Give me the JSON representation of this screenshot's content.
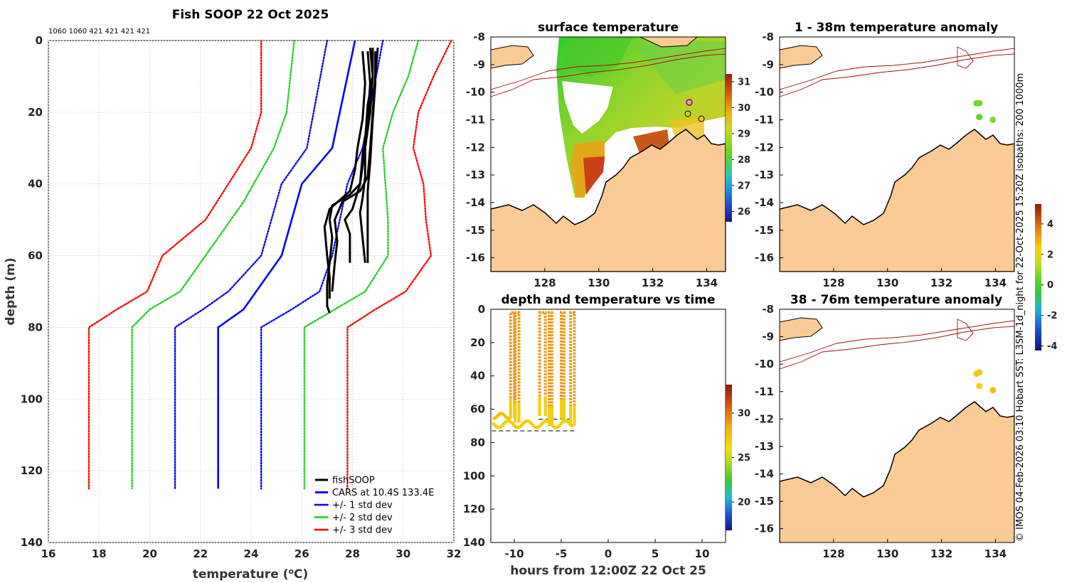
{
  "figure": {
    "credit": "© IMOS 04-Feb-2026 03:10 Hobart SST: L3SM-1d_night for 22-Oct-2025 15:20Z isobaths: 200  1000m"
  },
  "profile": {
    "title": "Fish SOOP 22 Oct 2025",
    "header_counts": "1060 1060 421 421 421 421",
    "xlabel": "temperature (°C)",
    "ylabel": "depth (m)"
  },
  "sst_map": {
    "title": "surface temperature"
  },
  "timeseries": {
    "title": "depth and temperature vs time",
    "xlabel": "hours from 12:00Z 22 Oct 25"
  },
  "anom_upper": {
    "title": "1 - 38m temperature anomaly"
  },
  "anom_lower": {
    "title": "38 - 76m temperature anomaly"
  },
  "chart_data": [
    {
      "id": "profile",
      "type": "line",
      "title": "Fish SOOP 22 Oct 2025",
      "xlabel": "temperature (°C)",
      "ylabel": "depth (m)",
      "xlim": [
        16,
        32
      ],
      "ylim": [
        140,
        0
      ],
      "xticks": [
        16,
        18,
        20,
        22,
        24,
        26,
        28,
        30,
        32
      ],
      "yticks": [
        0,
        20,
        40,
        60,
        80,
        100,
        120,
        140
      ],
      "grid": true,
      "legend_position": "bottom-right",
      "series": [
        {
          "name": "CARS at 10.4S 133.4E",
          "style": "solid",
          "color": "#0000ff",
          "points": [
            [
              28.1,
              0
            ],
            [
              27.2,
              30
            ],
            [
              26.0,
              40
            ],
            [
              25.2,
              60
            ],
            [
              24.2,
              70
            ],
            [
              23.7,
              75
            ],
            [
              22.7,
              80
            ],
            [
              22.7,
              125
            ]
          ]
        },
        {
          "name": "+/- 1 std dev",
          "style": "dotted",
          "color": "#0000ff",
          "points": [
            [
              27.0,
              0
            ],
            [
              26.2,
              30
            ],
            [
              25.2,
              40
            ],
            [
              24.4,
              60
            ],
            [
              23.1,
              70
            ],
            [
              22.1,
              75
            ],
            [
              21.0,
              80
            ],
            [
              21.0,
              125
            ]
          ]
        },
        {
          "name": "",
          "style": "dotted",
          "color": "#0000ff",
          "points": [
            [
              29.2,
              0
            ],
            [
              28.4,
              30
            ],
            [
              27.8,
              40
            ],
            [
              27.5,
              50
            ],
            [
              27.2,
              60
            ],
            [
              26.7,
              70
            ],
            [
              25.6,
              75
            ],
            [
              24.4,
              80
            ],
            [
              24.4,
              125
            ]
          ]
        },
        {
          "name": "+/- 2 std dev",
          "style": "dotted",
          "color": "#22cc22",
          "points": [
            [
              25.7,
              0
            ],
            [
              25.4,
              20
            ],
            [
              24.9,
              30
            ],
            [
              23.7,
              45
            ],
            [
              22.2,
              60
            ],
            [
              21.2,
              70
            ],
            [
              20.0,
              75
            ],
            [
              19.3,
              80
            ],
            [
              19.3,
              125
            ]
          ]
        },
        {
          "name": "",
          "style": "dotted",
          "color": "#22cc22",
          "points": [
            [
              30.6,
              0
            ],
            [
              30.2,
              10
            ],
            [
              29.6,
              20
            ],
            [
              29.2,
              30
            ],
            [
              29.3,
              40
            ],
            [
              29.4,
              50
            ],
            [
              29.4,
              60
            ],
            [
              28.5,
              70
            ],
            [
              27.3,
              75
            ],
            [
              26.1,
              80
            ],
            [
              26.1,
              125
            ]
          ]
        },
        {
          "name": "+/- 3 std dev",
          "style": "dotted",
          "color": "#ff0000",
          "points": [
            [
              24.4,
              0
            ],
            [
              24.4,
              20
            ],
            [
              24.0,
              30
            ],
            [
              22.2,
              50
            ],
            [
              20.5,
              60
            ],
            [
              19.9,
              70
            ],
            [
              18.7,
              75
            ],
            [
              17.6,
              80
            ],
            [
              17.6,
              125
            ]
          ]
        },
        {
          "name": "",
          "style": "dotted",
          "color": "#ff0000",
          "points": [
            [
              31.9,
              0
            ],
            [
              31.2,
              10
            ],
            [
              30.6,
              20
            ],
            [
              30.4,
              30
            ],
            [
              30.8,
              40
            ],
            [
              30.9,
              50
            ],
            [
              31.1,
              60
            ],
            [
              30.1,
              70
            ],
            [
              28.9,
              75
            ],
            [
              27.8,
              80
            ],
            [
              27.8,
              125
            ]
          ]
        },
        {
          "name": "fishSOOP",
          "style": "solid",
          "color": "#000000",
          "points": [
            [
              28.7,
              2
            ],
            [
              28.8,
              10
            ],
            [
              28.7,
              20
            ],
            [
              28.5,
              30
            ],
            [
              28.3,
              40
            ],
            [
              27.9,
              43
            ],
            [
              27.2,
              46
            ],
            [
              27.1,
              50
            ],
            [
              27.2,
              55
            ],
            [
              27.1,
              62
            ],
            [
              27.0,
              68
            ],
            [
              27.0,
              74
            ],
            [
              27.1,
              76
            ]
          ]
        },
        {
          "name": "",
          "style": "solid",
          "color": "#000000",
          "points": [
            [
              29.0,
              2
            ],
            [
              28.9,
              10
            ],
            [
              28.8,
              20
            ],
            [
              28.7,
              30
            ],
            [
              28.6,
              38
            ],
            [
              28.3,
              42
            ],
            [
              27.6,
              45
            ],
            [
              27.3,
              50
            ],
            [
              27.4,
              56
            ],
            [
              27.3,
              62
            ],
            [
              27.2,
              70
            ]
          ]
        },
        {
          "name": "",
          "style": "solid",
          "color": "#000000",
          "points": [
            [
              28.6,
              3
            ],
            [
              28.7,
              12
            ],
            [
              28.6,
              22
            ],
            [
              28.4,
              32
            ],
            [
              28.3,
              40
            ],
            [
              28.0,
              47
            ],
            [
              27.7,
              50
            ],
            [
              27.9,
              54
            ],
            [
              27.9,
              62
            ]
          ]
        },
        {
          "name": "",
          "style": "solid",
          "color": "#000000",
          "points": [
            [
              28.9,
              3
            ],
            [
              28.9,
              12
            ],
            [
              28.8,
              22
            ],
            [
              28.7,
              34
            ],
            [
              28.6,
              42
            ],
            [
              28.6,
              50
            ],
            [
              28.6,
              56
            ],
            [
              28.6,
              62
            ]
          ]
        },
        {
          "name": "",
          "style": "solid",
          "color": "#000000",
          "points": [
            [
              28.4,
              3
            ],
            [
              28.5,
              12
            ],
            [
              28.4,
              22
            ],
            [
              28.2,
              30
            ],
            [
              28.1,
              36
            ],
            [
              27.9,
              42
            ],
            [
              27.1,
              47
            ],
            [
              26.9,
              52
            ],
            [
              27.0,
              60
            ],
            [
              27.1,
              66
            ],
            [
              27.1,
              72
            ]
          ]
        },
        {
          "name": "",
          "style": "solid",
          "color": "#000000",
          "points": [
            [
              28.8,
              2
            ],
            [
              28.8,
              10
            ],
            [
              28.6,
              18
            ],
            [
              28.5,
              28
            ],
            [
              28.5,
              38
            ],
            [
              28.4,
              44
            ],
            [
              28.3,
              48
            ],
            [
              28.4,
              55
            ],
            [
              28.5,
              62
            ]
          ]
        }
      ]
    },
    {
      "id": "sst_map",
      "type": "heatmap",
      "title": "surface temperature",
      "xlim": [
        126,
        134.7
      ],
      "ylim": [
        -16.5,
        -8
      ],
      "xticks": [
        128,
        130,
        132,
        134
      ],
      "yticks": [
        -8,
        -9,
        -10,
        -11,
        -12,
        -13,
        -14,
        -15,
        -16
      ],
      "colorbar": {
        "min": 25.6,
        "max": 31.3,
        "ticks": [
          26,
          27,
          28,
          29,
          30,
          31
        ]
      }
    },
    {
      "id": "timeseries",
      "type": "scatter",
      "title": "depth and temperature vs time",
      "xlabel": "hours from 12:00Z 22 Oct 25",
      "xlim": [
        -12.5,
        12.5
      ],
      "ylim": [
        140,
        0
      ],
      "xticks": [
        -10,
        -5,
        0,
        5,
        10
      ],
      "yticks": [
        0,
        20,
        40,
        60,
        80,
        100,
        120,
        140
      ],
      "colorbar": {
        "min": 16.8,
        "max": 33.2,
        "ticks": [
          20,
          25,
          30
        ]
      },
      "casts": [
        {
          "t0": -10.4,
          "t1": -10.0,
          "bottom": 65
        },
        {
          "t0": -9.9,
          "t1": -9.5,
          "bottom": 68
        },
        {
          "t0": -7.3,
          "t1": -6.7,
          "bottom": 64
        },
        {
          "t0": -6.3,
          "t1": -6.0,
          "bottom": 70
        },
        {
          "t0": -5.0,
          "t1": -4.7,
          "bottom": 66
        },
        {
          "t0": -4.0,
          "t1": -3.6,
          "bottom": 70
        }
      ]
    },
    {
      "id": "anom_upper",
      "type": "heatmap",
      "title": "1 - 38m temperature anomaly",
      "xlim": [
        126,
        134.7
      ],
      "ylim": [
        -16.5,
        -8
      ],
      "xticks": [
        128,
        130,
        132,
        134
      ],
      "yticks": [
        -8,
        -9,
        -10,
        -11,
        -12,
        -13,
        -14,
        -15,
        -16
      ],
      "points": [
        {
          "lon": 133.4,
          "lat": -10.4,
          "value": 0.5
        },
        {
          "lon": 133.3,
          "lat": -10.4,
          "value": 0.6
        },
        {
          "lon": 133.4,
          "lat": -10.9,
          "value": 0.4
        },
        {
          "lon": 133.9,
          "lat": -11.0,
          "value": 0.8
        }
      ]
    },
    {
      "id": "anom_lower",
      "type": "heatmap",
      "title": "38 - 76m temperature anomaly",
      "xlim": [
        126,
        134.7
      ],
      "ylim": [
        -16.5,
        -8
      ],
      "xticks": [
        128,
        130,
        132,
        134
      ],
      "yticks": [
        -8,
        -9,
        -10,
        -11,
        -12,
        -13,
        -14,
        -15,
        -16
      ],
      "colorbar": {
        "min": -4.3,
        "max": 5.3,
        "ticks": [
          -4,
          -2,
          0,
          2,
          4
        ]
      },
      "points": [
        {
          "lon": 133.4,
          "lat": -10.3,
          "value": 2.6
        },
        {
          "lon": 133.3,
          "lat": -10.35,
          "value": 2.5
        },
        {
          "lon": 133.4,
          "lat": -10.8,
          "value": 2.4
        },
        {
          "lon": 133.9,
          "lat": -10.95,
          "value": 2.7
        }
      ]
    }
  ]
}
